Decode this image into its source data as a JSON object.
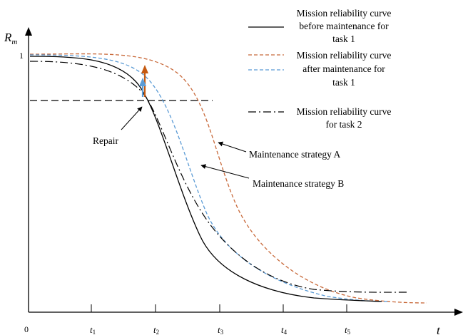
{
  "axes": {
    "y_title": "R",
    "y_title_sub": "m",
    "y_tick_one": "1",
    "x_origin": "0",
    "x_title": "t",
    "x_ticks": [
      {
        "base": "t",
        "sub": "1"
      },
      {
        "base": "t",
        "sub": "2"
      },
      {
        "base": "t",
        "sub": "3"
      },
      {
        "base": "t",
        "sub": "4"
      },
      {
        "base": "t",
        "sub": "5"
      }
    ]
  },
  "legend": {
    "before": [
      "Mission reliability curve",
      "before maintenance for",
      "task 1"
    ],
    "after": [
      "Mission reliability curve",
      "after maintenance for",
      "task 1"
    ],
    "task2": [
      "Mission reliability curve",
      "for task 2"
    ]
  },
  "annotations": {
    "repair": "Repair",
    "strategy_a": "Maintenance strategy A",
    "strategy_b": "Maintenance strategy B"
  },
  "colors": {
    "before": "#000000",
    "after_a": "#c8693a",
    "after_b": "#5b9bd5",
    "task2": "#000000",
    "threshold": "#000000",
    "arrow_a": "#c55a11",
    "arrow_b": "#5b9bd5"
  }
}
